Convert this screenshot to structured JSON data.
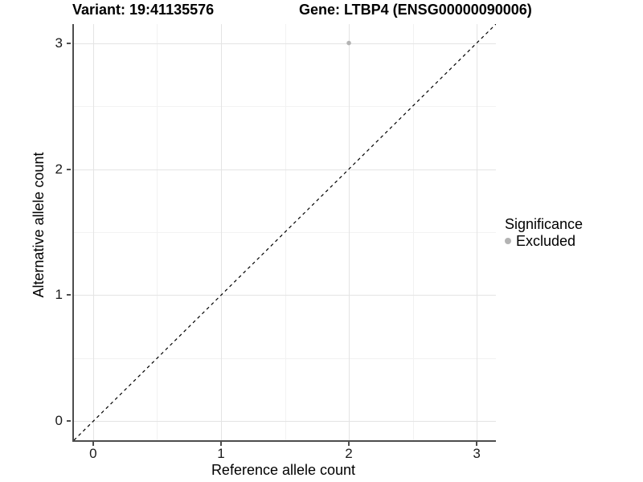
{
  "header": {
    "variant_title": "Variant: 19:41135576",
    "gene_title": "Gene: LTBP4 (ENSG00000090006)"
  },
  "chart_data": {
    "type": "scatter",
    "xlabel": "Reference allele count",
    "ylabel": "Alternative allele count",
    "xticks": [
      0,
      1,
      2,
      3
    ],
    "yticks": [
      0,
      1,
      2,
      3
    ],
    "xminor": [
      0.5,
      1.5,
      2.5
    ],
    "yminor": [
      0.5,
      1.5,
      2.5
    ],
    "xlim": [
      -0.15,
      3.15
    ],
    "ylim": [
      -0.15,
      3.15
    ],
    "grid": true,
    "points": [
      {
        "x": 2,
        "y": 3,
        "label": "Excluded",
        "color": "#b3b3b3"
      }
    ],
    "reference_line": {
      "style": "dashed",
      "color": "#000000",
      "from": [
        -0.15,
        -0.15
      ],
      "to": [
        3.15,
        3.15
      ]
    },
    "legend": {
      "title": "Significance",
      "position": "right",
      "entries": [
        {
          "label": "Excluded",
          "color": "#b3b3b3"
        }
      ]
    }
  }
}
